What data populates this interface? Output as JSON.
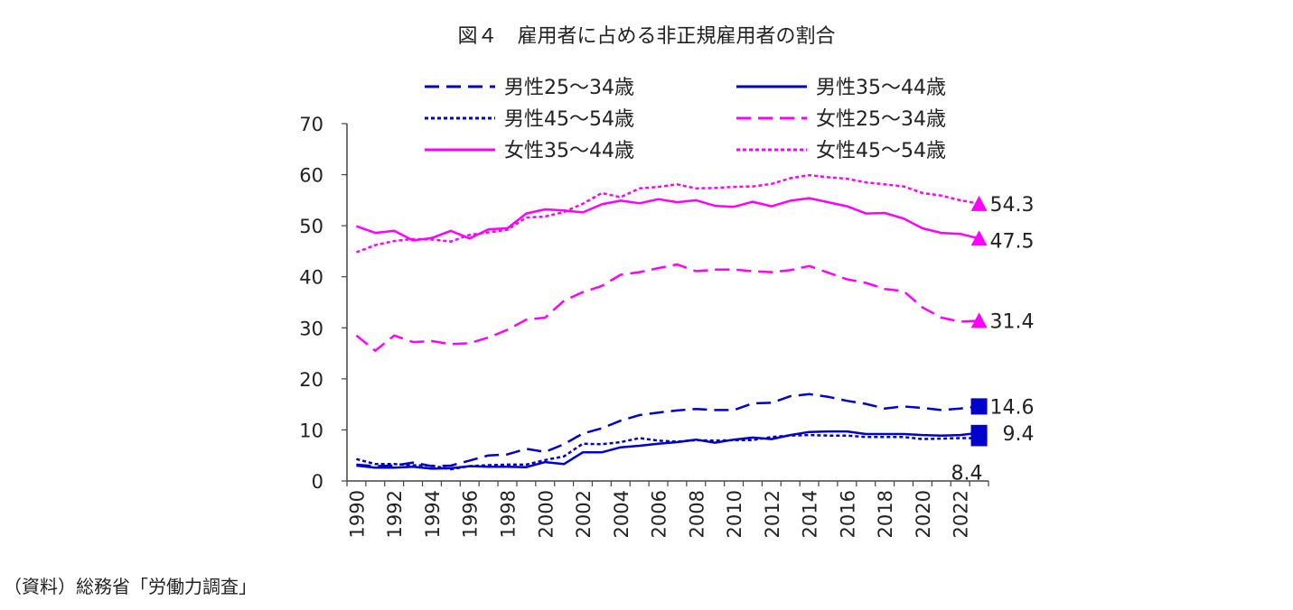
{
  "title": "図４　雇用者に占める非正規雇用者の割合",
  "source": "（資料）総務省「労働力調査」",
  "chart_data": {
    "type": "line",
    "title": "図４　雇用者に占める非正規雇用者の割合",
    "xlabel": "",
    "ylabel": "",
    "ylim": [
      0,
      70
    ],
    "yticks": [
      0,
      10,
      20,
      30,
      40,
      50,
      60,
      70
    ],
    "x": [
      1990,
      1991,
      1992,
      1993,
      1994,
      1995,
      1996,
      1997,
      1998,
      1999,
      2000,
      2001,
      2002,
      2003,
      2004,
      2005,
      2006,
      2007,
      2008,
      2009,
      2010,
      2011,
      2012,
      2013,
      2014,
      2015,
      2016,
      2017,
      2018,
      2019,
      2020,
      2021,
      2022,
      2023
    ],
    "xtick_labels": [
      "1990",
      "1992",
      "1994",
      "1996",
      "1998",
      "2000",
      "2002",
      "2004",
      "2006",
      "2008",
      "2010",
      "2012",
      "2014",
      "2016",
      "2018",
      "2020",
      "2022"
    ],
    "series": [
      {
        "name": "男性25～34歳",
        "color": "#0000cc",
        "style": "dash",
        "values": [
          3.2,
          2.9,
          3.0,
          3.6,
          2.9,
          3.0,
          4.0,
          5.0,
          5.2,
          6.3,
          5.7,
          7.2,
          9.3,
          10.3,
          11.8,
          12.9,
          13.4,
          13.8,
          14.1,
          13.9,
          13.9,
          15.2,
          15.3,
          16.6,
          17.0,
          16.5,
          15.7,
          15.1,
          14.2,
          14.6,
          14.3,
          13.9,
          14.2,
          14.6
        ]
      },
      {
        "name": "男性35～44歳",
        "color": "#0000cc",
        "style": "solid",
        "values": [
          3.0,
          2.6,
          2.6,
          2.8,
          2.4,
          2.5,
          2.9,
          2.8,
          2.8,
          2.7,
          3.7,
          3.3,
          5.6,
          5.6,
          6.6,
          6.9,
          7.3,
          7.6,
          8.1,
          7.5,
          8.1,
          8.5,
          8.2,
          9.0,
          9.6,
          9.7,
          9.7,
          9.2,
          9.2,
          9.2,
          9.0,
          8.9,
          9.0,
          9.4
        ]
      },
      {
        "name": "男性45～54歳",
        "color": "#0000cc",
        "style": "dot",
        "values": [
          4.3,
          3.3,
          3.3,
          3.1,
          3.0,
          2.3,
          2.9,
          3.1,
          3.2,
          3.2,
          4.1,
          4.8,
          7.3,
          7.2,
          7.6,
          8.4,
          7.9,
          7.7,
          8.0,
          7.9,
          8.0,
          8.0,
          8.6,
          8.9,
          9.0,
          8.9,
          8.9,
          8.6,
          8.6,
          8.6,
          8.2,
          8.3,
          8.4,
          8.4
        ]
      },
      {
        "name": "女性25～34歳",
        "color": "#ff00ff",
        "style": "dash",
        "values": [
          28.5,
          25.5,
          28.5,
          27.2,
          27.4,
          26.8,
          27.0,
          28.1,
          29.6,
          31.6,
          32.0,
          35.3,
          37.0,
          38.2,
          40.4,
          40.9,
          41.7,
          42.4,
          41.1,
          41.4,
          41.4,
          41.1,
          40.9,
          41.3,
          42.1,
          40.8,
          39.5,
          38.8,
          37.6,
          37.2,
          34.0,
          32.0,
          31.2,
          31.4
        ]
      },
      {
        "name": "女性35～44歳",
        "color": "#ff00ff",
        "style": "solid",
        "values": [
          49.9,
          48.6,
          49.0,
          47.1,
          47.6,
          49.0,
          47.5,
          49.3,
          49.5,
          52.4,
          53.2,
          53.0,
          52.6,
          54.2,
          54.9,
          54.4,
          55.2,
          54.6,
          55.0,
          53.9,
          53.7,
          54.7,
          53.8,
          54.9,
          55.4,
          54.6,
          53.8,
          52.4,
          52.5,
          51.4,
          49.5,
          48.6,
          48.4,
          47.5
        ]
      },
      {
        "name": "女性45～54歳",
        "color": "#ff00ff",
        "style": "dot",
        "values": [
          44.8,
          46.2,
          47.0,
          47.4,
          47.3,
          46.9,
          48.2,
          48.7,
          49.2,
          51.6,
          51.8,
          52.7,
          54.3,
          56.4,
          55.6,
          57.3,
          57.6,
          58.1,
          57.3,
          57.4,
          57.6,
          57.7,
          58.2,
          59.3,
          59.9,
          59.5,
          59.2,
          58.5,
          58.1,
          57.7,
          56.4,
          55.9,
          55.0,
          54.3
        ]
      }
    ],
    "end_labels": [
      {
        "text": "54.3",
        "series": "女性45～54歳",
        "marker": "triangle"
      },
      {
        "text": "47.5",
        "series": "女性35～44歳",
        "marker": "triangle"
      },
      {
        "text": "31.4",
        "series": "女性25～34歳",
        "marker": "triangle"
      },
      {
        "text": "14.6",
        "series": "男性25～34歳",
        "marker": "square"
      },
      {
        "text": "9.4",
        "series": "男性35～44歳",
        "marker": "square"
      },
      {
        "text": "8.4",
        "series": "男性45～54歳",
        "marker": "square"
      }
    ],
    "legend_position": "top"
  }
}
